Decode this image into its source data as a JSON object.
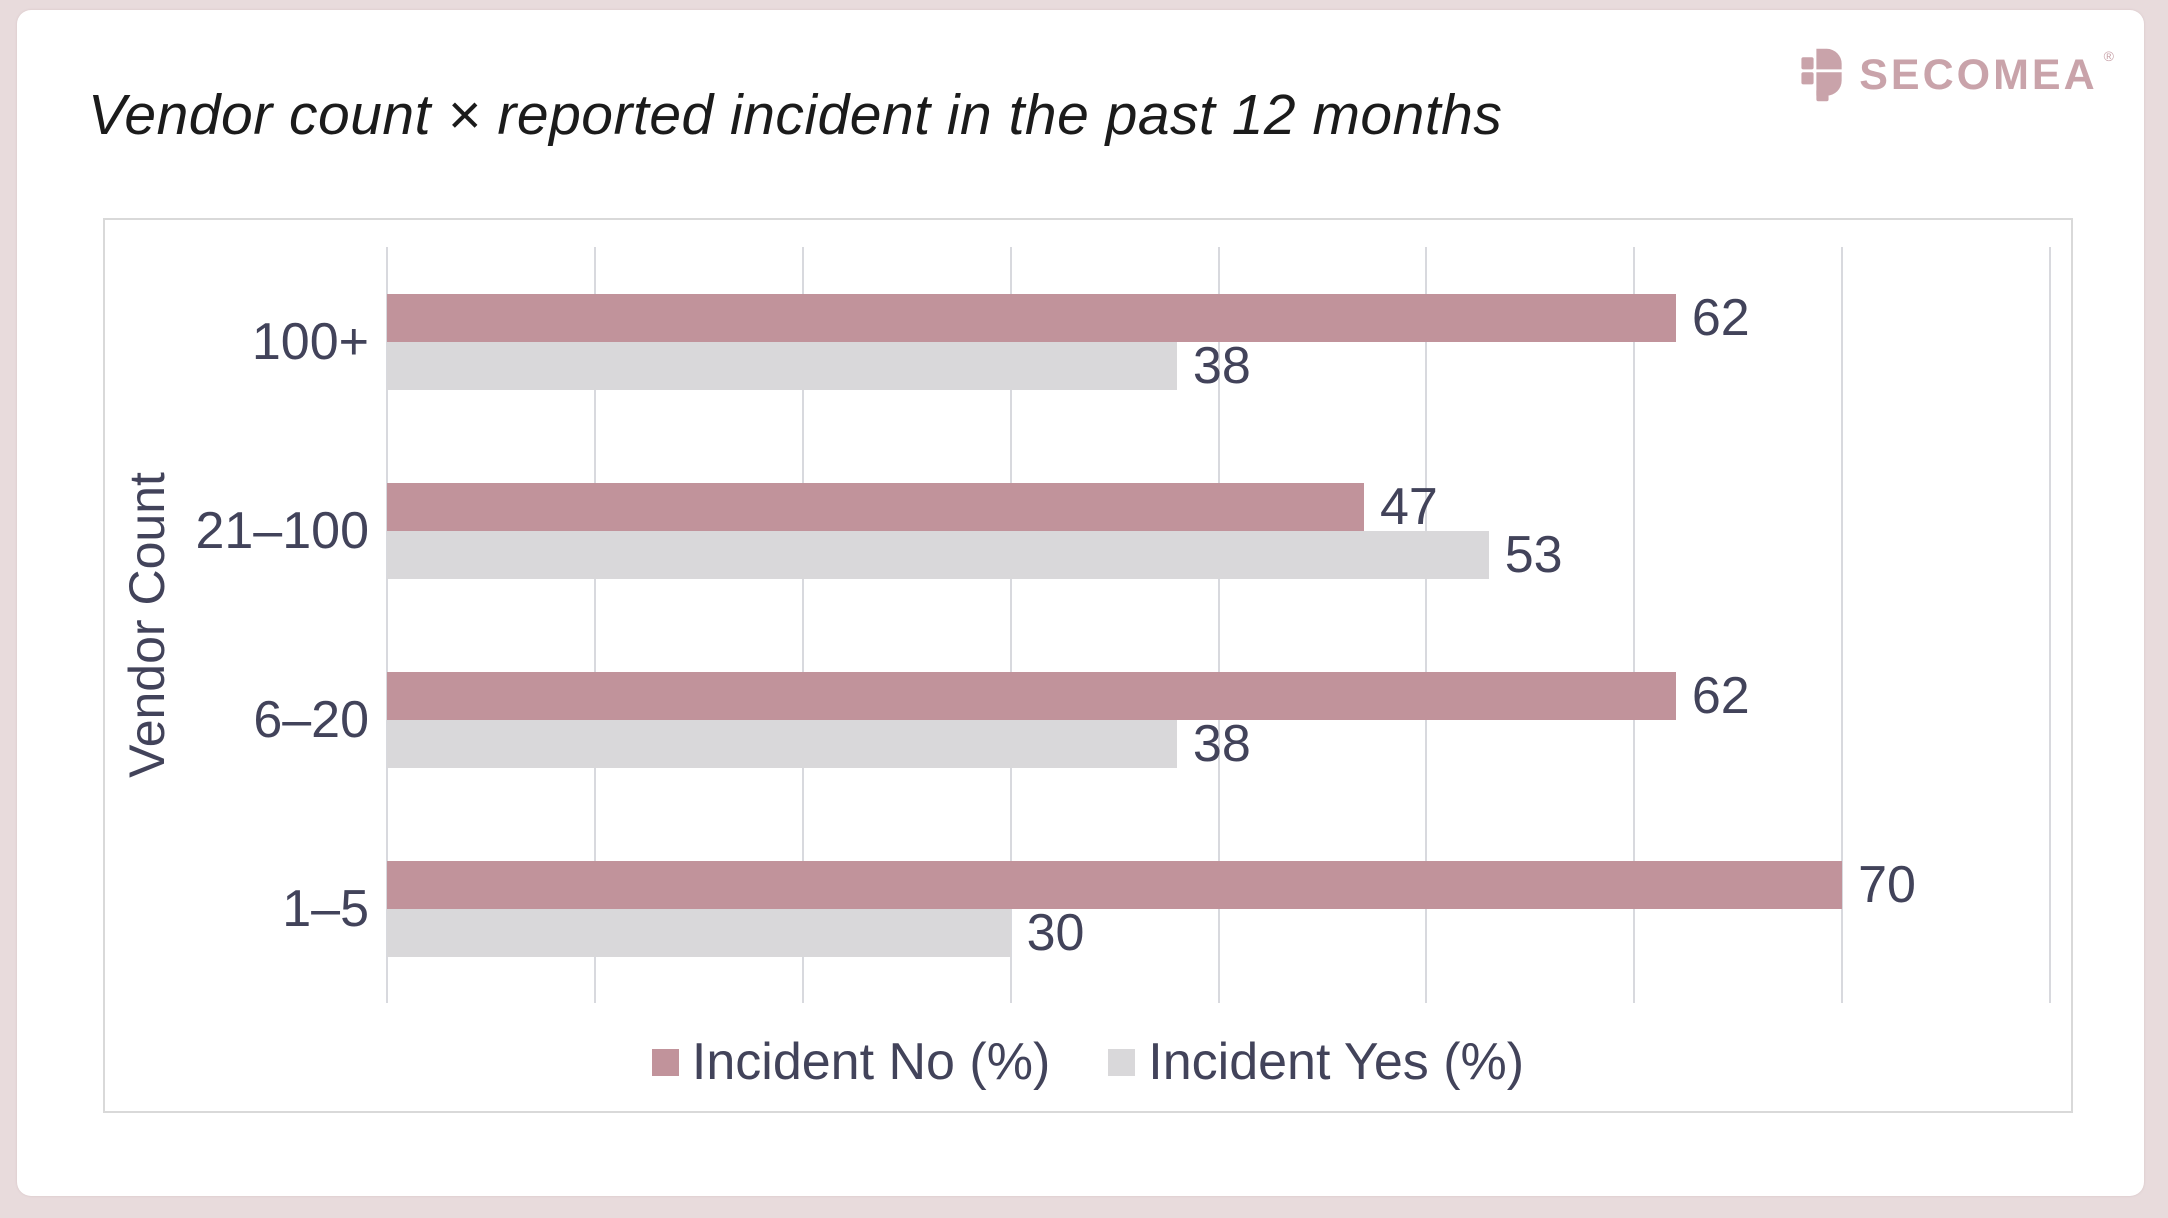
{
  "brand": {
    "name": "SECOMEA",
    "trademark": "®",
    "logo_color": "#c9a3aa"
  },
  "chart_data": {
    "type": "bar",
    "orientation": "horizontal",
    "title": "Vendor count × reported incident in the past 12 months",
    "categories": [
      "100+",
      "21–100",
      "6–20",
      "1–5"
    ],
    "series": [
      {
        "name": "Incident No (%)",
        "values": [
          62,
          47,
          62,
          70
        ],
        "color": "#c1939b"
      },
      {
        "name": "Incident Yes (%)",
        "values": [
          38,
          53,
          38,
          30
        ],
        "color": "#d9d8da"
      }
    ],
    "ylabel": "Vendor Count",
    "xlabel": "",
    "xlim": [
      0,
      80
    ],
    "gridline_step": 10,
    "grid": "vertical",
    "x_tick_labels_visible": false,
    "legend_position": "bottom-center",
    "value_labels": true
  },
  "colors": {
    "page_background": "#e8dbdc",
    "card_background": "#ffffff",
    "chart_border": "#d9d9d9",
    "gridline": "#d8d9de",
    "text": "#42435a",
    "title_text": "#1b1b1b"
  }
}
